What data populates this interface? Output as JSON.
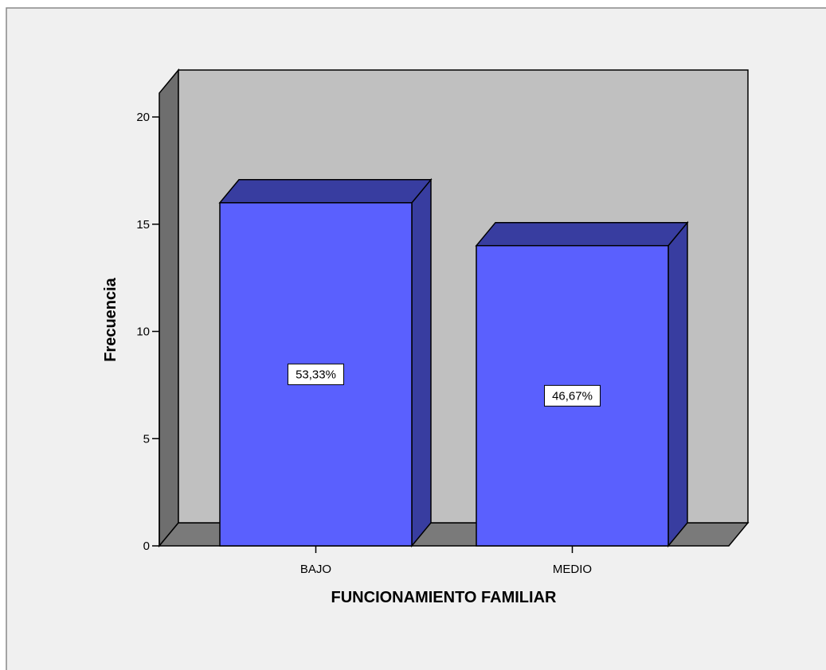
{
  "chart_data": {
    "type": "bar",
    "style": "3d",
    "categories": [
      "BAJO",
      "MEDIO"
    ],
    "values": [
      16,
      14
    ],
    "data_labels": [
      "53,33%",
      "46,67%"
    ],
    "xlabel": "FUNCIONAMIENTO FAMILIAR",
    "ylabel": "Frecuencia",
    "ylim": [
      0,
      20
    ],
    "yticks": [
      0,
      5,
      10,
      15,
      20
    ],
    "grid": false,
    "legend": "none"
  },
  "colors": {
    "frame_background": "#f0f0f0",
    "plot_back_wall": "#c0c0c0",
    "side_wall": "#6e6e6e",
    "floor": "#7a7a7a",
    "bar_front": "#5a60fe",
    "bar_top": "#383da0",
    "bar_side": "#383da0"
  }
}
